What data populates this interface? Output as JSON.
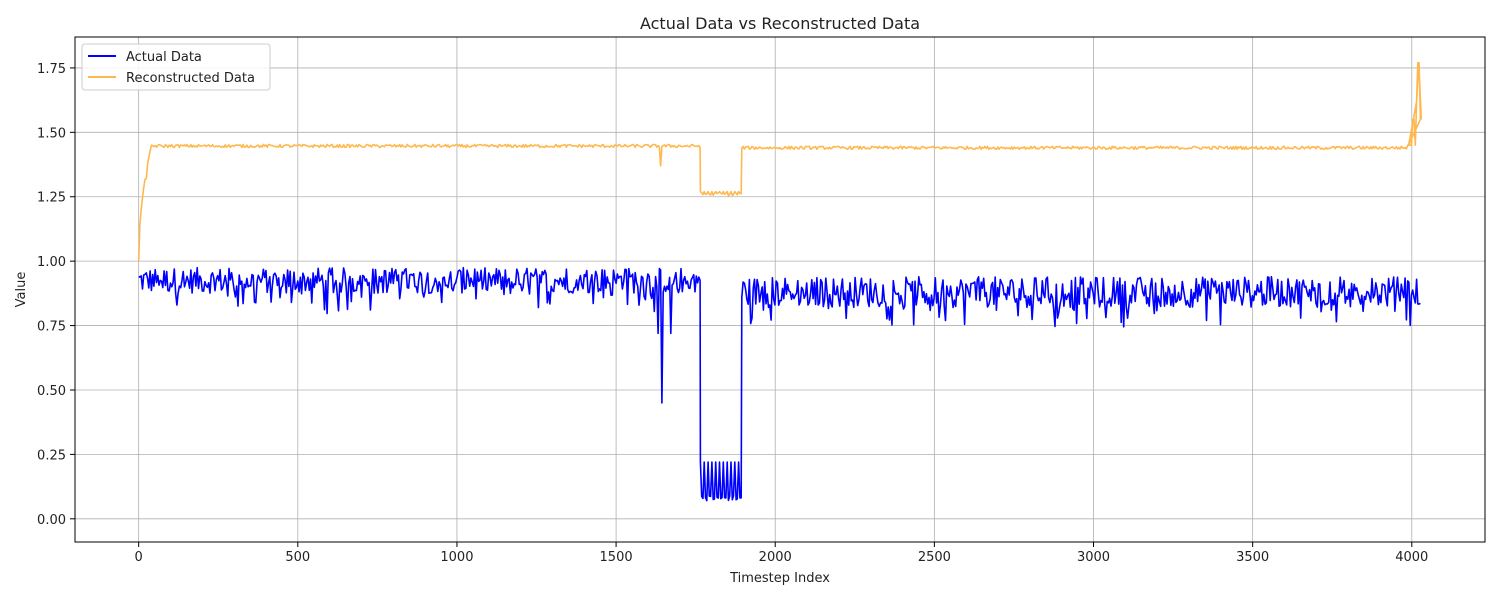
{
  "chart_data": {
    "type": "line",
    "title": "Actual Data vs Reconstructed Data",
    "xlabel": "Timestep Index",
    "ylabel": "Value",
    "xlim": [
      -200,
      4230
    ],
    "ylim": [
      -0.09,
      1.87
    ],
    "xticks": [
      0,
      500,
      1000,
      1500,
      2000,
      2500,
      3000,
      3500,
      4000
    ],
    "yticks": [
      0.0,
      0.25,
      0.5,
      0.75,
      1.0,
      1.25,
      1.5,
      1.75
    ],
    "ytick_labels": [
      "0.00",
      "0.25",
      "0.50",
      "0.75",
      "1.00",
      "1.25",
      "1.50",
      "1.75"
    ],
    "grid": true,
    "legend_position": "top-left",
    "series": [
      {
        "name": "Actual Data",
        "color": "#0000ff",
        "segments": [
          {
            "x0": 0,
            "x1": 1765,
            "base": 0.925,
            "noise": 0.05,
            "spikes_down": [
              [
                120,
                0.83
              ],
              [
                480,
                0.84
              ],
              [
                950,
                0.84
              ],
              [
                1630,
                0.72
              ],
              [
                1645,
                0.45
              ],
              [
                1670,
                0.72
              ]
            ]
          },
          {
            "x0": 1765,
            "x1": 1895,
            "base": 0.08,
            "noise": 0.01,
            "spikes_up": 0.22,
            "min_at": [
              [
                1775,
                0.0
              ],
              [
                1770,
                0.99
              ]
            ]
          },
          {
            "x0": 1895,
            "x1": 4030,
            "base": 0.88,
            "noise": 0.06,
            "spikes_down": [
              [
                2050,
                0.79
              ],
              [
                3495,
                0.75
              ],
              [
                3510,
                0.8
              ],
              [
                3840,
                0.77
              ]
            ],
            "spikes_up_at": [
              [
                4020,
                1.0
              ]
            ]
          }
        ]
      },
      {
        "name": "Reconstructed Data",
        "color": "#ffb84d",
        "segments": [
          {
            "x0": 0,
            "x1": 1765,
            "start": 1.0,
            "rise_to": 1.45,
            "rise_end": 40,
            "base": 1.447,
            "noise": 0.006,
            "spikes_down": [
              [
                25,
                1.32
              ],
              [
                1640,
                1.37
              ]
            ]
          },
          {
            "x0": 1765,
            "x1": 1895,
            "base": 1.26,
            "noise": 0.006,
            "spikes_up": 1.27
          },
          {
            "x0": 1895,
            "x1": 4030,
            "base": 1.44,
            "noise": 0.006,
            "tail": [
              [
                3990,
                1.45
              ],
              [
                4005,
                1.55
              ],
              [
                4015,
                1.62
              ],
              [
                4022,
                1.77
              ],
              [
                4030,
                1.55
              ]
            ]
          }
        ]
      }
    ]
  }
}
